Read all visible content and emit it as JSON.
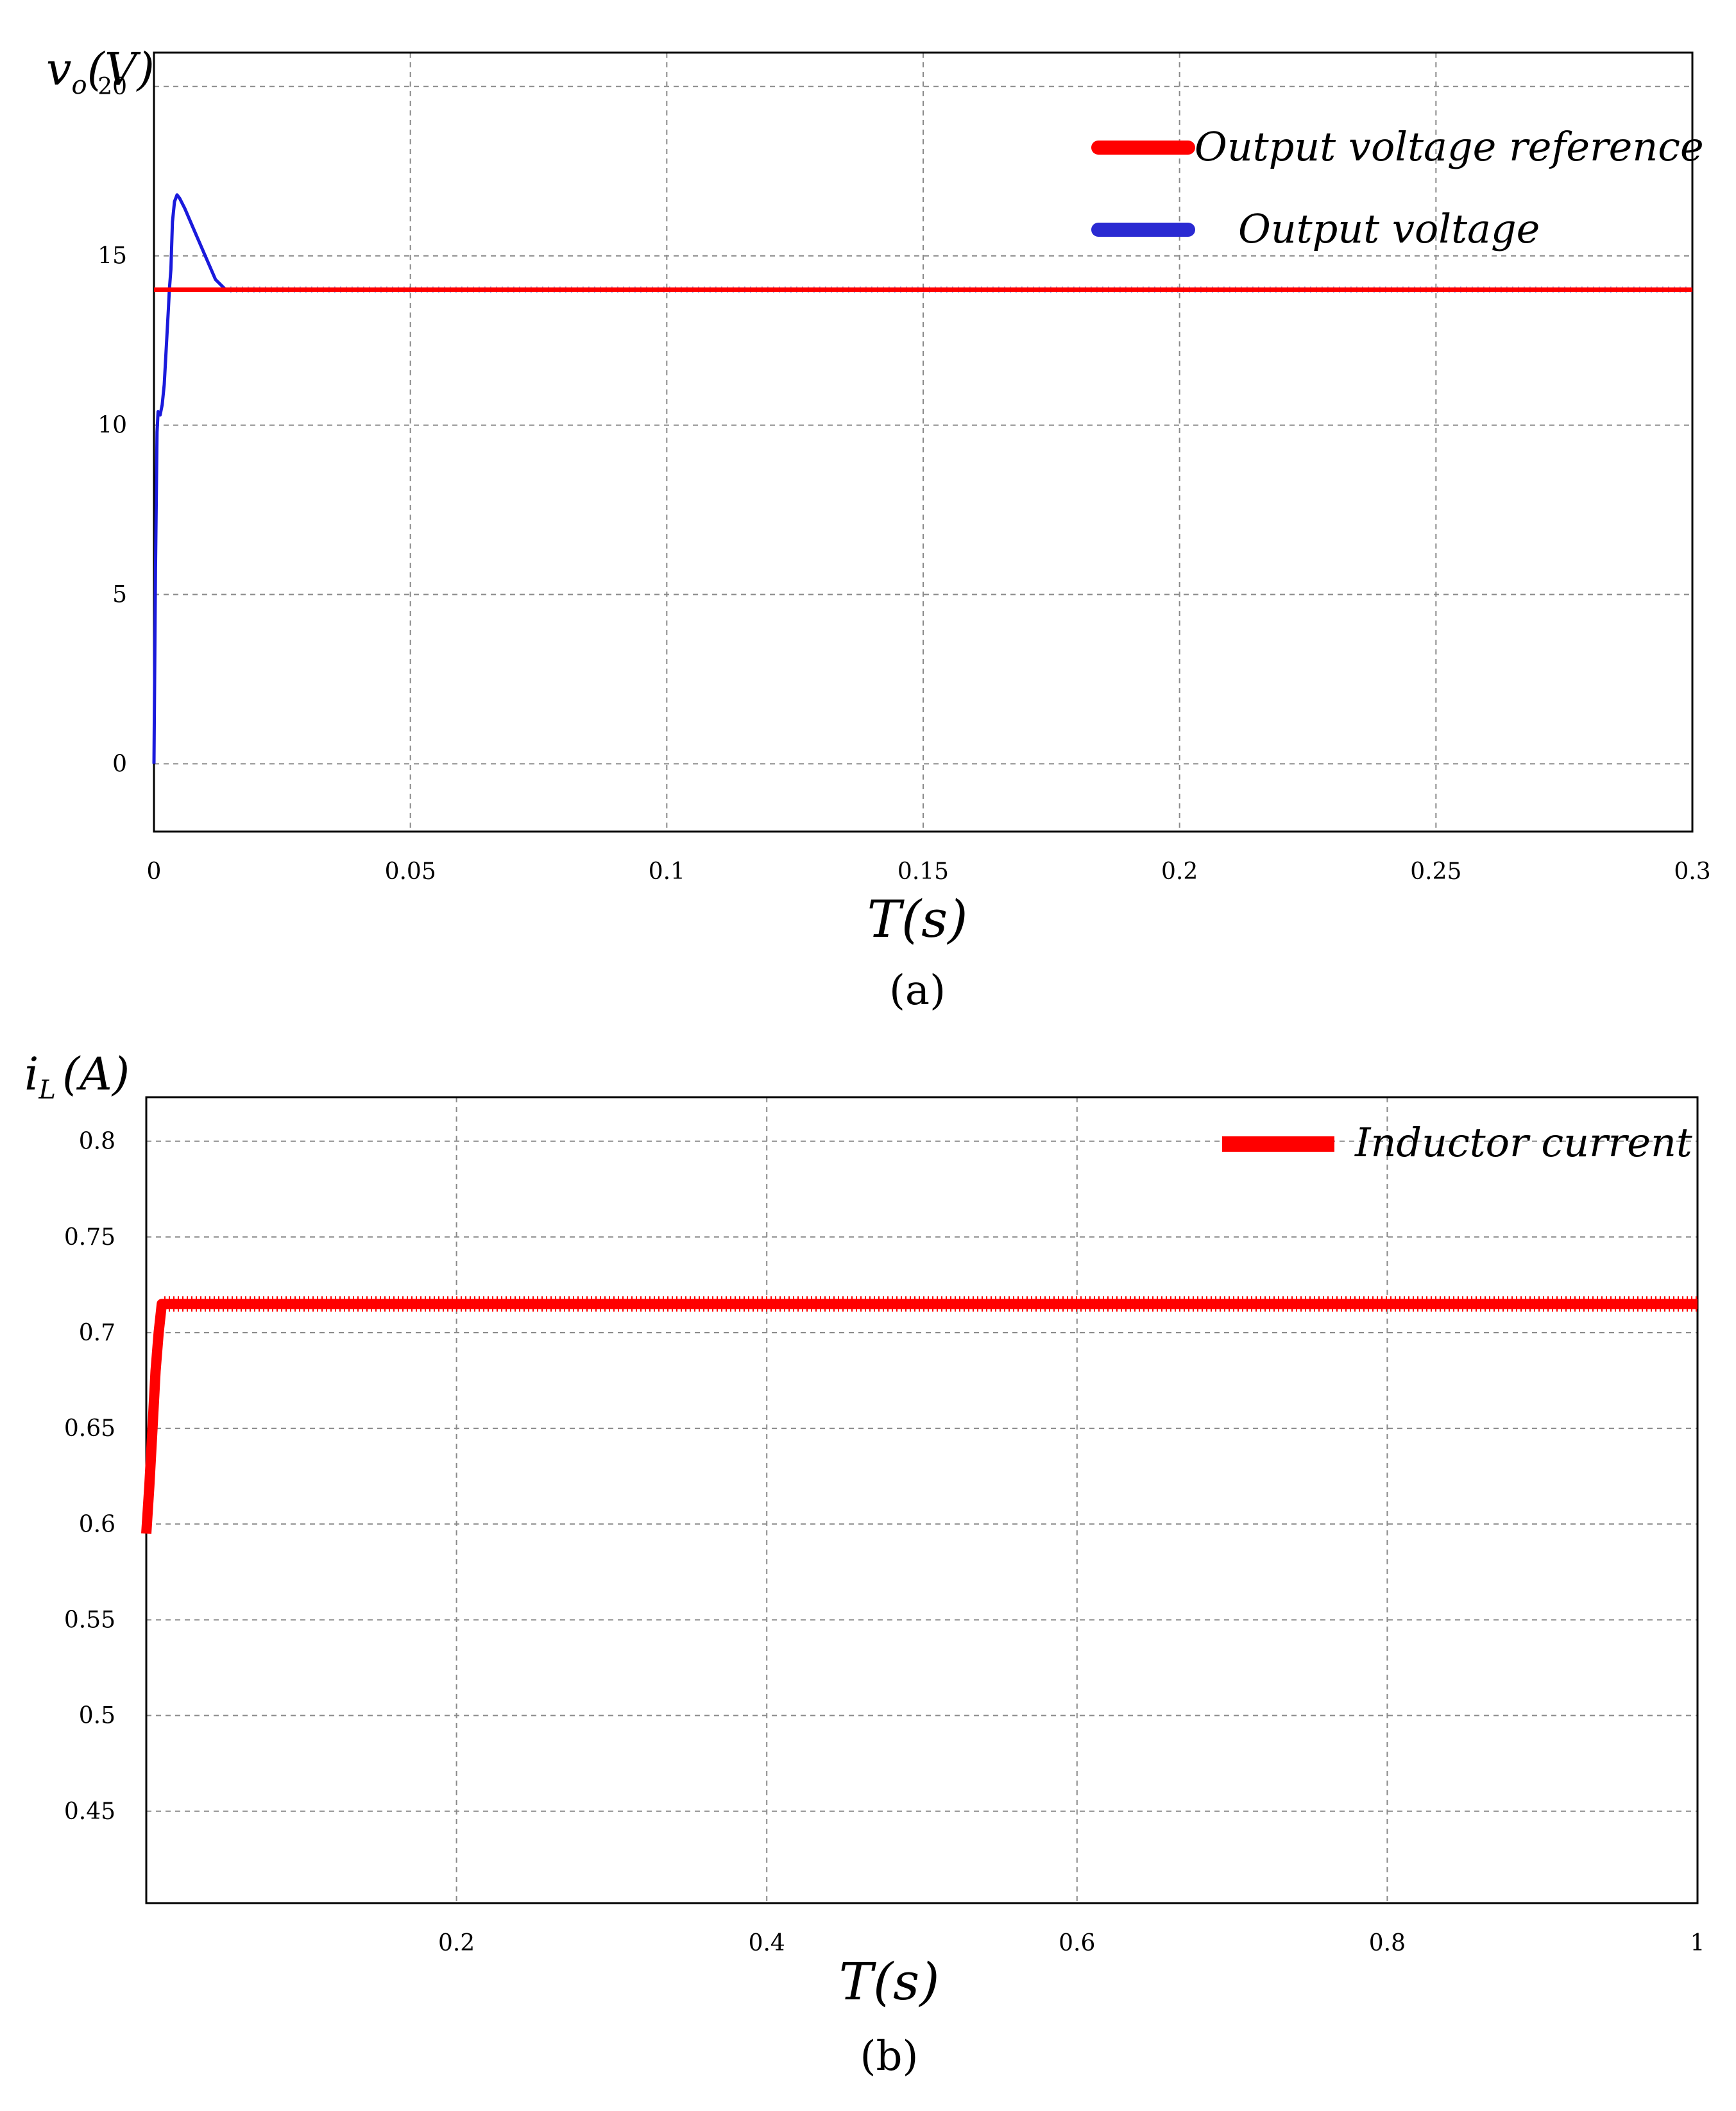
{
  "chart_data": [
    {
      "type": "line",
      "panel_label": "(a)",
      "xlabel": "T(s)",
      "ylabel_main": "v",
      "ylabel_sub": "o",
      "ylabel_unit": "(V)",
      "xlim": [
        0,
        0.3
      ],
      "ylim": [
        -2,
        21
      ],
      "xticks": [
        0,
        0.05,
        0.1,
        0.15,
        0.2,
        0.25,
        0.3
      ],
      "xtick_labels": [
        "0",
        "0.05",
        "0.1",
        "0.15",
        "0.2",
        "0.25",
        "0.3"
      ],
      "yticks": [
        0,
        5,
        10,
        15,
        20
      ],
      "ytick_labels": [
        "0",
        "5",
        "10",
        "15",
        "20"
      ],
      "grid": true,
      "legend_position": "top-right",
      "series": [
        {
          "name": "Output voltage reference",
          "color": "#ff0000",
          "x": [
            0,
            0.3
          ],
          "y": [
            14,
            14
          ]
        },
        {
          "name": "Output voltage",
          "color": "#1a1adc",
          "x": [
            0,
            0.0003,
            0.0006,
            0.0008,
            0.0012,
            0.0016,
            0.002,
            0.0024,
            0.0028,
            0.003,
            0.0033,
            0.0036,
            0.004,
            0.0045,
            0.005,
            0.006,
            0.008,
            0.01,
            0.012,
            0.014,
            0.02,
            0.05,
            0.1,
            0.15,
            0.2,
            0.25,
            0.3
          ],
          "y": [
            0,
            5.8,
            9.8,
            10.4,
            10.3,
            10.6,
            11.2,
            12.3,
            13.4,
            14.0,
            14.6,
            16.0,
            16.6,
            16.8,
            16.7,
            16.4,
            15.7,
            15.0,
            14.3,
            14.0,
            14.0,
            14.0,
            14.0,
            14.0,
            14.0,
            14.0,
            14.0
          ]
        }
      ]
    },
    {
      "type": "line",
      "panel_label": "(b)",
      "xlabel": "T(s)",
      "ylabel_main": "i",
      "ylabel_sub": "L",
      "ylabel_unit": "(A)",
      "xlim": [
        0,
        1
      ],
      "ylim": [
        0.402,
        0.823
      ],
      "xticks": [
        0.2,
        0.4,
        0.6,
        0.8,
        1
      ],
      "xtick_labels": [
        "0.2",
        "0.4",
        "0.6",
        "0.8",
        "1"
      ],
      "yticks": [
        0.45,
        0.5,
        0.55,
        0.6,
        0.65,
        0.7,
        0.75,
        0.8
      ],
      "ytick_labels": [
        "0.45",
        "0.5",
        "0.55",
        "0.6",
        "0.65",
        "0.7",
        "0.75",
        "0.8"
      ],
      "grid": true,
      "legend_position": "top-right",
      "series": [
        {
          "name": "Inductor current",
          "color": "#ff0000",
          "x": [
            0,
            0.002,
            0.004,
            0.006,
            0.008,
            0.01,
            0.015,
            0.1,
            0.2,
            0.4,
            0.6,
            0.8,
            1
          ],
          "y": [
            0.595,
            0.62,
            0.65,
            0.68,
            0.7,
            0.715,
            0.715,
            0.715,
            0.715,
            0.715,
            0.715,
            0.715,
            0.715
          ]
        }
      ]
    }
  ]
}
